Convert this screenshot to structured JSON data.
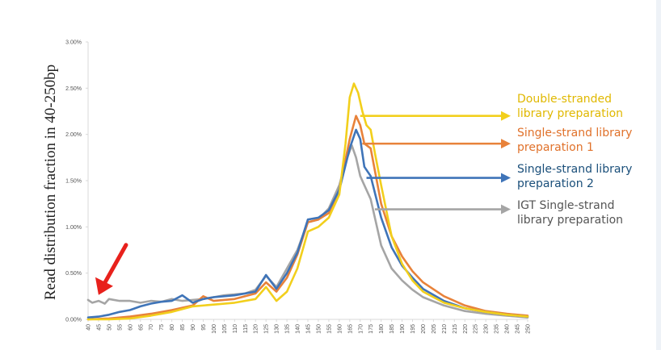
{
  "chart_data": {
    "type": "line",
    "ylabel": "Read distribution fraction in 40-250bp",
    "xlabel": "",
    "x_ticks": [
      40,
      45,
      50,
      55,
      60,
      65,
      70,
      75,
      80,
      85,
      90,
      95,
      100,
      105,
      110,
      115,
      120,
      125,
      130,
      135,
      140,
      145,
      150,
      155,
      160,
      165,
      170,
      175,
      180,
      185,
      190,
      195,
      200,
      205,
      210,
      215,
      220,
      225,
      230,
      235,
      240,
      245,
      250
    ],
    "xlim": [
      40,
      250
    ],
    "y_ticks": [
      "0.00%",
      "0.50%",
      "1.00%",
      "1.50%",
      "2.00%",
      "2.50%",
      "3.00%"
    ],
    "ylim": [
      0,
      3.0
    ],
    "grid": false,
    "series": [
      {
        "name": "Double-stranded library preparation",
        "color": "#f2cf1c",
        "text_color": "#e0b800",
        "label_lines": [
          "Double-stranded",
          "library preparation"
        ],
        "arrow_from_x": 170,
        "arrow_y": 2.2,
        "points": [
          [
            40,
            0.0
          ],
          [
            50,
            0.0
          ],
          [
            60,
            0.01
          ],
          [
            70,
            0.04
          ],
          [
            80,
            0.08
          ],
          [
            90,
            0.14
          ],
          [
            100,
            0.16
          ],
          [
            110,
            0.18
          ],
          [
            120,
            0.22
          ],
          [
            125,
            0.35
          ],
          [
            130,
            0.2
          ],
          [
            135,
            0.3
          ],
          [
            140,
            0.55
          ],
          [
            145,
            0.95
          ],
          [
            150,
            1.0
          ],
          [
            155,
            1.1
          ],
          [
            160,
            1.35
          ],
          [
            163,
            1.9
          ],
          [
            165,
            2.4
          ],
          [
            167,
            2.55
          ],
          [
            169,
            2.45
          ],
          [
            171,
            2.25
          ],
          [
            173,
            2.1
          ],
          [
            175,
            2.05
          ],
          [
            177,
            1.8
          ],
          [
            180,
            1.45
          ],
          [
            185,
            0.9
          ],
          [
            190,
            0.6
          ],
          [
            195,
            0.42
          ],
          [
            200,
            0.3
          ],
          [
            210,
            0.18
          ],
          [
            220,
            0.12
          ],
          [
            230,
            0.08
          ],
          [
            240,
            0.05
          ],
          [
            250,
            0.03
          ]
        ]
      },
      {
        "name": "Single-strand library preparation 1",
        "color": "#e8823a",
        "text_color": "#e0712a",
        "label_lines": [
          "Single-strand library",
          "preparation 1"
        ],
        "arrow_from_x": 171,
        "arrow_y": 1.9,
        "points": [
          [
            40,
            0.0
          ],
          [
            50,
            0.01
          ],
          [
            60,
            0.03
          ],
          [
            70,
            0.06
          ],
          [
            80,
            0.1
          ],
          [
            90,
            0.15
          ],
          [
            95,
            0.25
          ],
          [
            100,
            0.2
          ],
          [
            110,
            0.22
          ],
          [
            120,
            0.28
          ],
          [
            125,
            0.4
          ],
          [
            130,
            0.3
          ],
          [
            135,
            0.45
          ],
          [
            140,
            0.7
          ],
          [
            145,
            1.05
          ],
          [
            150,
            1.08
          ],
          [
            155,
            1.15
          ],
          [
            160,
            1.4
          ],
          [
            165,
            1.95
          ],
          [
            168,
            2.2
          ],
          [
            170,
            2.1
          ],
          [
            172,
            1.9
          ],
          [
            175,
            1.85
          ],
          [
            180,
            1.25
          ],
          [
            185,
            0.9
          ],
          [
            190,
            0.68
          ],
          [
            195,
            0.52
          ],
          [
            200,
            0.4
          ],
          [
            210,
            0.25
          ],
          [
            220,
            0.15
          ],
          [
            230,
            0.09
          ],
          [
            240,
            0.06
          ],
          [
            250,
            0.04
          ]
        ]
      },
      {
        "name": "Single-strand library preparation 2",
        "color": "#3f74b8",
        "text_color": "#1a4f7a",
        "label_lines": [
          "Single-strand library",
          "preparation 2"
        ],
        "arrow_from_x": 173,
        "arrow_y": 1.53,
        "points": [
          [
            40,
            0.02
          ],
          [
            45,
            0.03
          ],
          [
            50,
            0.05
          ],
          [
            55,
            0.08
          ],
          [
            60,
            0.1
          ],
          [
            65,
            0.14
          ],
          [
            70,
            0.17
          ],
          [
            75,
            0.19
          ],
          [
            80,
            0.2
          ],
          [
            85,
            0.26
          ],
          [
            90,
            0.18
          ],
          [
            95,
            0.22
          ],
          [
            100,
            0.24
          ],
          [
            110,
            0.26
          ],
          [
            120,
            0.3
          ],
          [
            125,
            0.48
          ],
          [
            130,
            0.33
          ],
          [
            135,
            0.5
          ],
          [
            140,
            0.72
          ],
          [
            145,
            1.08
          ],
          [
            150,
            1.1
          ],
          [
            155,
            1.18
          ],
          [
            160,
            1.4
          ],
          [
            165,
            1.85
          ],
          [
            168,
            2.05
          ],
          [
            170,
            1.95
          ],
          [
            172,
            1.65
          ],
          [
            175,
            1.55
          ],
          [
            180,
            1.1
          ],
          [
            185,
            0.78
          ],
          [
            190,
            0.58
          ],
          [
            195,
            0.45
          ],
          [
            200,
            0.33
          ],
          [
            210,
            0.2
          ],
          [
            220,
            0.12
          ],
          [
            230,
            0.08
          ],
          [
            240,
            0.05
          ],
          [
            250,
            0.03
          ]
        ]
      },
      {
        "name": "IGT Single-strand library preparation",
        "color": "#a5a5a5",
        "text_color": "#555555",
        "label_lines": [
          "IGT Single-strand",
          "library preparation"
        ],
        "arrow_from_x": 177,
        "arrow_y": 1.19,
        "points": [
          [
            40,
            0.21
          ],
          [
            42,
            0.18
          ],
          [
            45,
            0.2
          ],
          [
            48,
            0.17
          ],
          [
            50,
            0.22
          ],
          [
            55,
            0.2
          ],
          [
            60,
            0.2
          ],
          [
            65,
            0.18
          ],
          [
            70,
            0.2
          ],
          [
            75,
            0.19
          ],
          [
            80,
            0.22
          ],
          [
            85,
            0.2
          ],
          [
            90,
            0.21
          ],
          [
            95,
            0.22
          ],
          [
            100,
            0.24
          ],
          [
            105,
            0.26
          ],
          [
            110,
            0.27
          ],
          [
            115,
            0.28
          ],
          [
            120,
            0.32
          ],
          [
            125,
            0.47
          ],
          [
            130,
            0.35
          ],
          [
            135,
            0.55
          ],
          [
            140,
            0.75
          ],
          [
            145,
            1.05
          ],
          [
            150,
            1.08
          ],
          [
            155,
            1.2
          ],
          [
            160,
            1.45
          ],
          [
            163,
            1.7
          ],
          [
            166,
            1.88
          ],
          [
            168,
            1.75
          ],
          [
            170,
            1.55
          ],
          [
            172,
            1.45
          ],
          [
            175,
            1.3
          ],
          [
            180,
            0.8
          ],
          [
            185,
            0.55
          ],
          [
            190,
            0.42
          ],
          [
            195,
            0.32
          ],
          [
            200,
            0.24
          ],
          [
            210,
            0.15
          ],
          [
            220,
            0.09
          ],
          [
            230,
            0.06
          ],
          [
            240,
            0.04
          ],
          [
            250,
            0.02
          ]
        ]
      }
    ],
    "annotation_arrow": {
      "color": "#e8211c",
      "points_at_x": 45,
      "points_at_y": 0.22
    }
  }
}
